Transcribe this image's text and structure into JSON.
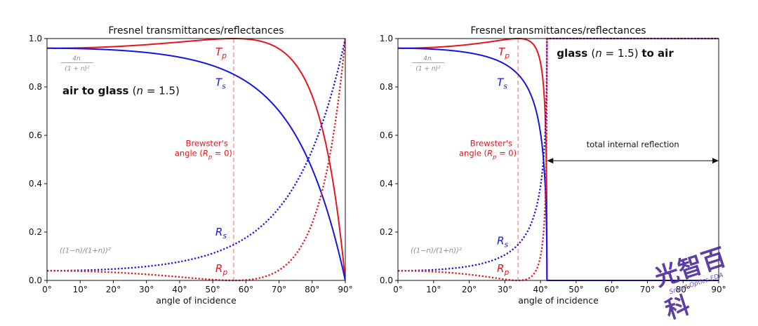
{
  "chart_data": [
    {
      "type": "line",
      "title": "Fresnel transmittances/reflectances",
      "xlabel": "angle of incidence",
      "ylabel": "",
      "xlim": [
        0,
        90
      ],
      "ylim": [
        0,
        1.0
      ],
      "x_ticks": [
        "0°",
        "10°",
        "20°",
        "30°",
        "40°",
        "50°",
        "60°",
        "70°",
        "80°",
        "90°"
      ],
      "y_ticks": [
        "0.0",
        "0.2",
        "0.4",
        "0.6",
        "0.8",
        "1.0"
      ],
      "n1": 1.0,
      "n2": 1.5,
      "series": [
        {
          "name": "T_p",
          "color": "#e8141b",
          "style": "solid"
        },
        {
          "name": "T_s",
          "color": "#1414e8",
          "style": "solid"
        },
        {
          "name": "R_s",
          "color": "#1414e8",
          "style": "dotted"
        },
        {
          "name": "R_p",
          "color": "#e8141b",
          "style": "dotted"
        }
      ],
      "brewster_angle": 56.31,
      "annotations": {
        "heading_bold": "air to glass",
        "heading_rest": "(n = 1.5)",
        "brewster_line1": "Brewster's",
        "brewster_line2": "angle (R_p = 0)",
        "label_tp": "T_p",
        "label_ts": "T_s",
        "label_rs": "R_s",
        "label_rp": "R_p",
        "trans_formula_num": "4n",
        "trans_formula_den": "(1 + n)²",
        "refl_formula": "((1−n)/(1+n))²"
      }
    },
    {
      "type": "line",
      "title": "Fresnel transmittances/reflectances",
      "xlabel": "angle of incidence",
      "ylabel": "",
      "xlim": [
        0,
        90
      ],
      "ylim": [
        0,
        1.0
      ],
      "x_ticks": [
        "0°",
        "10°",
        "20°",
        "30°",
        "40°",
        "50°",
        "60°",
        "70°",
        "80°",
        "90°"
      ],
      "y_ticks": [
        "0.0",
        "0.2",
        "0.4",
        "0.6",
        "0.8",
        "1.0"
      ],
      "n1": 1.5,
      "n2": 1.0,
      "series": [
        {
          "name": "T_p",
          "color": "#e8141b",
          "style": "solid"
        },
        {
          "name": "T_s",
          "color": "#1414e8",
          "style": "solid"
        },
        {
          "name": "R_s",
          "color": "#1414e8",
          "style": "dotted"
        },
        {
          "name": "R_p",
          "color": "#e8141b",
          "style": "dotted"
        }
      ],
      "brewster_angle": 33.69,
      "critical_angle": 41.81,
      "annotations": {
        "heading_bold1": "glass",
        "heading_rest": "(n = 1.5)",
        "heading_bold2": "to air",
        "brewster_line1": "Brewster's",
        "brewster_line2": "angle (R_p = 0)",
        "tir_label": "total internal reflection",
        "label_tp": "T_p",
        "label_ts": "T_s",
        "label_rs": "R_s",
        "label_rp": "R_p",
        "trans_formula_num": "4n",
        "trans_formula_den": "(1 + n)²",
        "refl_formula": "((1−n)/(1+n))²"
      }
    }
  ],
  "watermark": {
    "main": "光智百科",
    "sub": "Smart Optics EDA"
  }
}
